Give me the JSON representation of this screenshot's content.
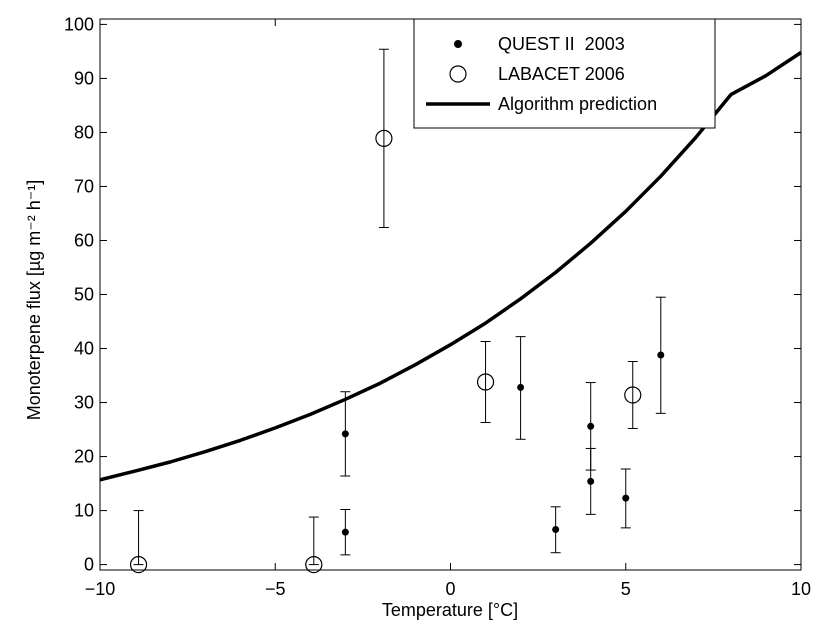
{
  "chart_data": {
    "type": "scatter",
    "xlabel": "Temperature [°C]",
    "ylabel": "Monoterpene flux [µg m⁻² h⁻¹]",
    "xlim": [
      -10,
      10
    ],
    "ylim": [
      -1,
      101
    ],
    "xticks": [
      -10,
      -5,
      0,
      5,
      10
    ],
    "xtick_labels": [
      "−10",
      "−5",
      "0",
      "5",
      "10"
    ],
    "yticks": [
      0,
      10,
      20,
      30,
      40,
      50,
      60,
      70,
      80,
      90,
      100
    ],
    "ytick_labels": [
      "0",
      "10",
      "20",
      "30",
      "40",
      "50",
      "60",
      "70",
      "80",
      "90",
      "100"
    ],
    "grid": false,
    "legend_position": "top-right",
    "series": [
      {
        "name": "QUEST II  2003",
        "marker": "filled-dot",
        "color": "#000000",
        "points": [
          {
            "x": -3,
            "y": 24.2,
            "err_low": 16.4,
            "err_high": 32.0
          },
          {
            "x": -3,
            "y": 6.0,
            "err_low": 1.8,
            "err_high": 10.2
          },
          {
            "x": 2,
            "y": 32.8,
            "err_low": 23.2,
            "err_high": 42.2
          },
          {
            "x": 3,
            "y": 6.5,
            "err_low": 2.2,
            "err_high": 10.7
          },
          {
            "x": 4,
            "y": 25.6,
            "err_low": 17.5,
            "err_high": 33.7
          },
          {
            "x": 4,
            "y": 15.4,
            "err_low": 9.3,
            "err_high": 21.5
          },
          {
            "x": 5,
            "y": 12.3,
            "err_low": 6.8,
            "err_high": 17.7
          },
          {
            "x": 6,
            "y": 38.8,
            "err_low": 28.0,
            "err_high": 49.5
          }
        ]
      },
      {
        "name": "LABACET 2006",
        "marker": "open-circle",
        "color": "#000000",
        "points": [
          {
            "x": -8.9,
            "y": 0.0,
            "err_low": 0.0,
            "err_high": 10.0
          },
          {
            "x": -3.9,
            "y": 0.0,
            "err_low": 0.0,
            "err_high": 8.8
          },
          {
            "x": -1.9,
            "y": 78.9,
            "err_low": 62.4,
            "err_high": 95.4
          },
          {
            "x": 1.0,
            "y": 33.8,
            "err_low": 26.3,
            "err_high": 41.3
          },
          {
            "x": 5.2,
            "y": 31.4,
            "err_low": 25.2,
            "err_high": 37.6
          }
        ]
      },
      {
        "name": "Algorithm prediction",
        "type": "line",
        "color": "#000000",
        "x": [
          -10,
          -9,
          -8,
          -7,
          -6,
          -5,
          -4,
          -3,
          -2,
          -1,
          0,
          1,
          2,
          3,
          4,
          5,
          6,
          7,
          8,
          9,
          10
        ],
        "y": [
          15.7,
          17.3,
          19.0,
          20.9,
          23.0,
          25.3,
          27.8,
          30.6,
          33.6,
          37.0,
          40.7,
          44.7,
          49.2,
          54.1,
          59.5,
          65.4,
          71.9,
          79.1,
          87.0,
          90.5,
          94.8
        ]
      }
    ]
  }
}
